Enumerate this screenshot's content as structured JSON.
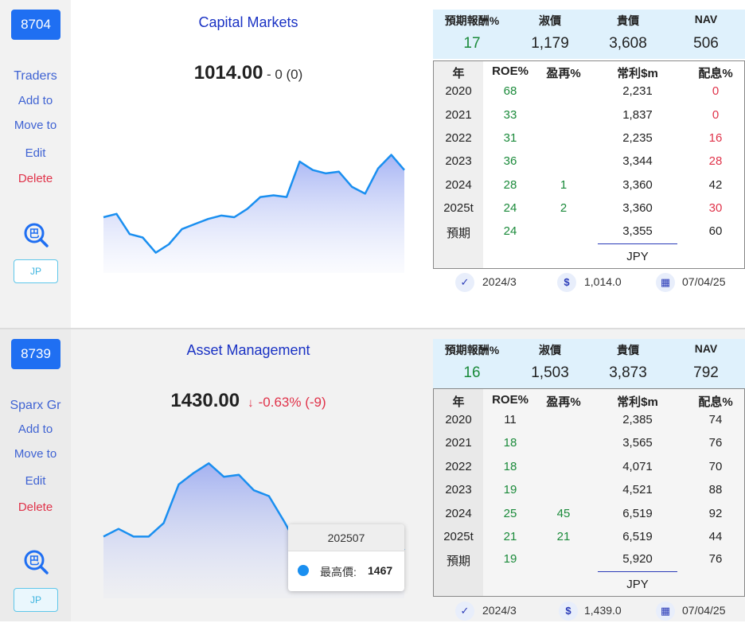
{
  "colors": {
    "accent": "#1f6ff2",
    "green": "#1a8a3a",
    "red": "#e0334a",
    "title": "#1a32c4",
    "line": "#1a8ff0"
  },
  "sidebar_labels": {
    "add": "Add to",
    "move": "Move to",
    "edit": "Edit",
    "delete": "Delete",
    "search_glyph": "巴"
  },
  "table_headers": {
    "year": "年",
    "roe": "ROE%",
    "reinv": "盈再%",
    "profit": "常利$m",
    "div": "配息%"
  },
  "summary_headers": {
    "h1": "預期報酬%",
    "h2": "淑價",
    "h3": "貴價",
    "h4": "NAV"
  },
  "stocks": [
    {
      "code": "8704",
      "name": "Traders",
      "region": "JP",
      "sector": "Capital Markets",
      "price": "1014.00",
      "change": "- 0 (0)",
      "change_dir": "flat",
      "summary": {
        "expected_return": "17",
        "fair_price": "1,179",
        "expensive_price": "3,608",
        "nav": "506"
      },
      "financials": [
        {
          "year": "2020",
          "roe": "68",
          "roe_color": "green",
          "reinv": "",
          "reinv_color": "",
          "profit": "2,231",
          "div": "0",
          "div_color": "red"
        },
        {
          "year": "2021",
          "roe": "33",
          "roe_color": "green",
          "reinv": "",
          "reinv_color": "",
          "profit": "1,837",
          "div": "0",
          "div_color": "red"
        },
        {
          "year": "2022",
          "roe": "31",
          "roe_color": "green",
          "reinv": "",
          "reinv_color": "",
          "profit": "2,235",
          "div": "16",
          "div_color": "red"
        },
        {
          "year": "2023",
          "roe": "36",
          "roe_color": "green",
          "reinv": "",
          "reinv_color": "",
          "profit": "3,344",
          "div": "28",
          "div_color": "red"
        },
        {
          "year": "2024",
          "roe": "28",
          "roe_color": "green",
          "reinv": "1",
          "reinv_color": "green",
          "profit": "3,360",
          "div": "42",
          "div_color": ""
        },
        {
          "year": "2025t",
          "roe": "24",
          "roe_color": "green",
          "reinv": "2",
          "reinv_color": "green",
          "profit": "3,360",
          "div": "30",
          "div_color": "red"
        },
        {
          "year": "預期",
          "roe": "24",
          "roe_color": "green",
          "reinv": "",
          "reinv_color": "",
          "profit": "3,355",
          "div": "60",
          "div_color": ""
        }
      ],
      "currency": "JPY",
      "footer": {
        "period": "2024/3",
        "price": "1,014.0",
        "date": "07/04/25"
      },
      "chart_data": {
        "type": "area",
        "values": [
          1003,
          1005,
          993,
          991,
          982,
          987,
          996,
          999,
          1002,
          1004,
          1003,
          1008,
          1015,
          1016,
          1015,
          1036,
          1031,
          1029,
          1030,
          1021,
          1017,
          1032,
          1040,
          1031
        ],
        "ylim": [
          970,
          1045
        ]
      }
    },
    {
      "code": "8739",
      "name": "Sparx Gr",
      "region": "JP",
      "sector": "Asset Management",
      "price": "1430.00",
      "change": "-0.63% (-9)",
      "change_dir": "down",
      "summary": {
        "expected_return": "16",
        "fair_price": "1,503",
        "expensive_price": "3,873",
        "nav": "792"
      },
      "financials": [
        {
          "year": "2020",
          "roe": "11",
          "roe_color": "",
          "reinv": "",
          "reinv_color": "",
          "profit": "2,385",
          "div": "74",
          "div_color": ""
        },
        {
          "year": "2021",
          "roe": "18",
          "roe_color": "green",
          "reinv": "",
          "reinv_color": "",
          "profit": "3,565",
          "div": "76",
          "div_color": ""
        },
        {
          "year": "2022",
          "roe": "18",
          "roe_color": "green",
          "reinv": "",
          "reinv_color": "",
          "profit": "4,071",
          "div": "70",
          "div_color": ""
        },
        {
          "year": "2023",
          "roe": "19",
          "roe_color": "green",
          "reinv": "",
          "reinv_color": "",
          "profit": "4,521",
          "div": "88",
          "div_color": ""
        },
        {
          "year": "2024",
          "roe": "25",
          "roe_color": "green",
          "reinv": "45",
          "reinv_color": "green",
          "profit": "6,519",
          "div": "92",
          "div_color": ""
        },
        {
          "year": "2025t",
          "roe": "21",
          "roe_color": "green",
          "reinv": "21",
          "reinv_color": "green",
          "profit": "6,519",
          "div": "44",
          "div_color": ""
        },
        {
          "year": "預期",
          "roe": "19",
          "roe_color": "green",
          "reinv": "",
          "reinv_color": "",
          "profit": "5,920",
          "div": "76",
          "div_color": ""
        }
      ],
      "currency": "JPY",
      "footer": {
        "period": "2024/3",
        "price": "1,439.0",
        "date": "07/04/25"
      },
      "tooltip": {
        "period": "202507",
        "label": "最高價:",
        "value": "1467"
      },
      "chart_data": {
        "type": "area",
        "values": [
          1392,
          1396,
          1392,
          1392,
          1399,
          1419,
          1425,
          1430,
          1423,
          1424,
          1416,
          1413,
          1400,
          1386,
          1385,
          1384,
          1383,
          1385,
          1393,
          1389,
          1385
        ],
        "ylim": [
          1360,
          1440
        ]
      }
    }
  ]
}
